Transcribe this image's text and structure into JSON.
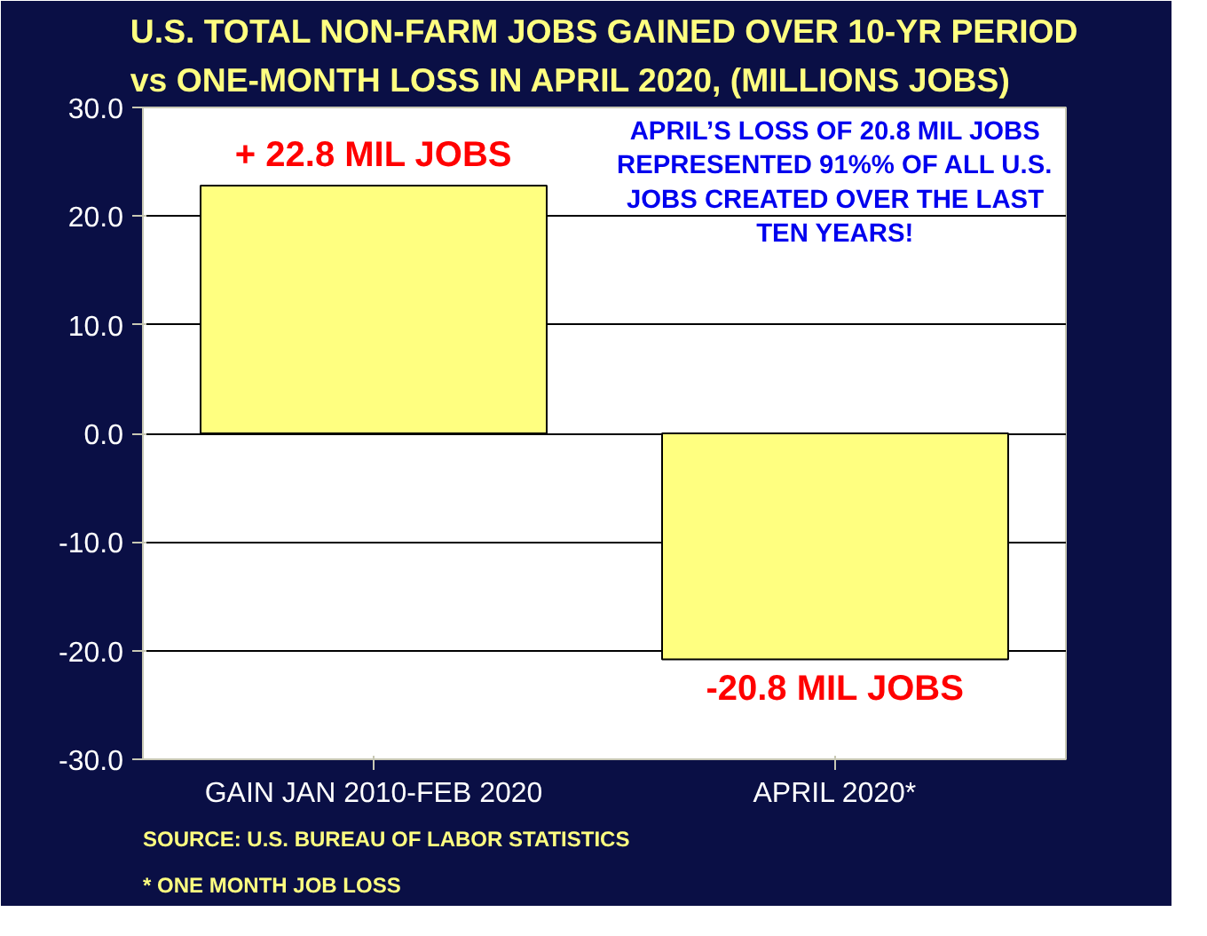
{
  "chart_data": {
    "type": "bar",
    "title": "U.S. TOTAL NON-FARM JOBS GAINED OVER 10-YR PERIOD\nvs ONE-MONTH LOSS IN APRIL 2020, (MILLIONS JOBS)",
    "categories": [
      "GAIN JAN 2010-FEB 2020",
      "APRIL 2020*"
    ],
    "values": [
      22.8,
      -20.8
    ],
    "color": "#ffff80",
    "value_labels": [
      "+ 22.8 MIL JOBS",
      "-20.8 MIL JOBS"
    ],
    "ylim": [
      -30,
      30
    ],
    "yticks": [
      {
        "value": -30,
        "label": "-30.0"
      },
      {
        "value": -20,
        "label": "-20.0"
      },
      {
        "value": -10,
        "label": "-10.0"
      },
      {
        "value": 0,
        "label": "0.0"
      },
      {
        "value": 10,
        "label": "10.0"
      },
      {
        "value": 20,
        "label": "20.0"
      },
      {
        "value": 30,
        "label": "30.0"
      }
    ],
    "grid": "y",
    "annotations": [
      "APRIL’S LOSS OF 20.8 MIL JOBS\nREPRESENTED 91%% OF ALL U.S.\nJOBS CREATED OVER THE LAST\nTEN YEARS!",
      "SOURCE: U.S. BUREAU OF LABOR STATISTICS",
      "* ONE MONTH JOB LOSS"
    ]
  }
}
